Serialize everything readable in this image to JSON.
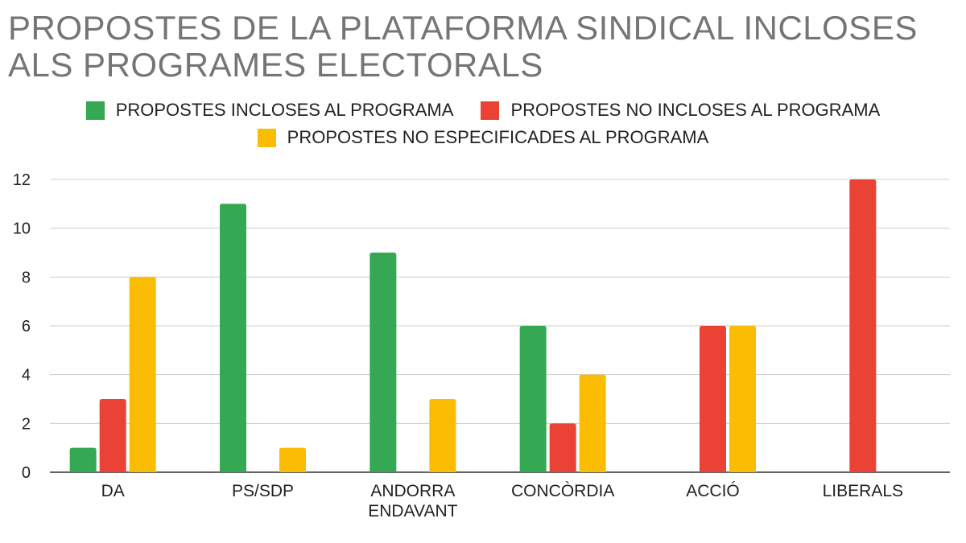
{
  "title": {
    "line1": "PROPOSTES DE LA PLATAFORMA SINDICAL INCLOSES",
    "line2": "ALS PROGRAMES ELECTORALS"
  },
  "legend": [
    {
      "label": "PROPOSTES INCLOSES AL PROGRAMA",
      "color": "#34a853"
    },
    {
      "label": "PROPOSTES NO INCLOSES AL PROGRAMA",
      "color": "#ea4335"
    },
    {
      "label": "PROPOSTES NO ESPECIFICADES AL PROGRAMA",
      "color": "#fbbc04"
    }
  ],
  "chart_data": {
    "type": "bar",
    "title": "PROPOSTES DE LA PLATAFORMA SINDICAL INCLOSES ALS PROGRAMES ELECTORALS",
    "xlabel": "",
    "ylabel": "",
    "categories": [
      [
        "DA"
      ],
      [
        "PS/SDP"
      ],
      [
        "ANDORRA",
        "ENDAVANT"
      ],
      [
        "CONCÒRDIA"
      ],
      [
        "ACCIÓ"
      ],
      [
        "LIBERALS"
      ]
    ],
    "series": [
      {
        "name": "PROPOSTES INCLOSES AL PROGRAMA",
        "color": "#34a853",
        "values": [
          1,
          11,
          9,
          6,
          0,
          0
        ]
      },
      {
        "name": "PROPOSTES NO INCLOSES AL PROGRAMA",
        "color": "#ea4335",
        "values": [
          3,
          0,
          0,
          2,
          6,
          12
        ]
      },
      {
        "name": "PROPOSTES NO ESPECIFICADES AL PROGRAMA",
        "color": "#fbbc04",
        "values": [
          8,
          1,
          3,
          4,
          6,
          0
        ]
      }
    ],
    "ylim": [
      0,
      12
    ],
    "yticks": [
      0,
      2,
      4,
      6,
      8,
      10,
      12
    ],
    "grid": true,
    "legend_position": "top"
  }
}
